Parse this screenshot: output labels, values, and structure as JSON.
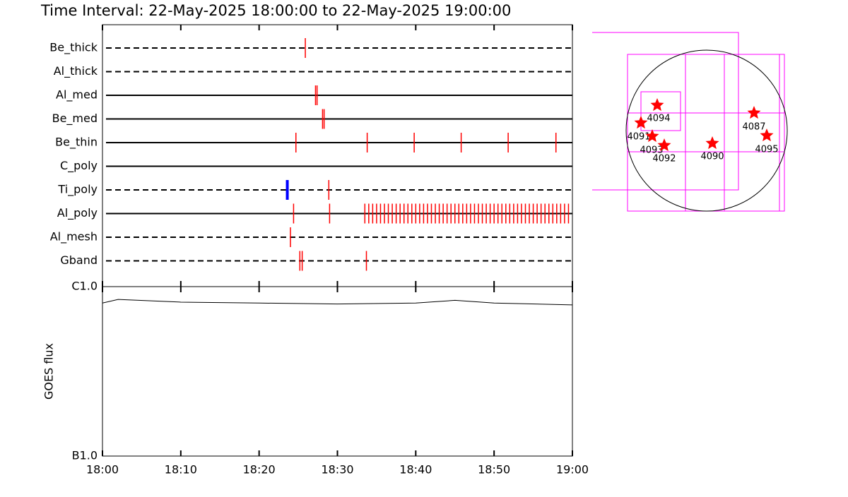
{
  "chart_data": {
    "type": "timeline",
    "title": "Time Interval: 22-May-2025 18:00:00 to 22-May-2025 19:00:00",
    "xlim": [
      0,
      60
    ],
    "xticks": [
      {
        "value": 0,
        "label": "18:00"
      },
      {
        "value": 10,
        "label": "18:10"
      },
      {
        "value": 20,
        "label": "18:20"
      },
      {
        "value": 30,
        "label": "18:30"
      },
      {
        "value": 40,
        "label": "18:40"
      },
      {
        "value": 50,
        "label": "18:50"
      },
      {
        "value": 60,
        "label": "19:00"
      }
    ],
    "event_color": "#ff0000",
    "rows": [
      {
        "name": "Be_thick",
        "dashed": true,
        "events": [
          25.9
        ]
      },
      {
        "name": "Al_thick",
        "dashed": true,
        "events": []
      },
      {
        "name": "Al_med",
        "dashed": false,
        "events": [
          27.2,
          27.4
        ]
      },
      {
        "name": "Be_med",
        "dashed": false,
        "events": [
          28.1,
          28.3
        ]
      },
      {
        "name": "Be_thin",
        "dashed": false,
        "events": [
          24.7,
          33.8,
          39.8,
          45.8,
          51.8,
          57.9
        ]
      },
      {
        "name": "C_poly",
        "dashed": false,
        "events": []
      },
      {
        "name": "Ti_poly",
        "dashed": true,
        "events": [
          28.9
        ],
        "special_events": [
          23.6
        ],
        "special_color": "#0000ff"
      },
      {
        "name": "Al_poly",
        "dashed": false,
        "events": [
          24.4,
          29.0,
          33.5,
          34,
          34.5,
          35,
          35.5,
          36,
          36.5,
          37,
          37.5,
          38,
          38.5,
          39,
          39.5,
          40,
          40.5,
          41,
          41.5,
          42,
          42.5,
          43,
          43.5,
          44,
          44.5,
          45,
          45.5,
          46,
          46.5,
          47,
          47.5,
          48,
          48.5,
          49,
          49.5,
          50,
          50.5,
          51,
          51.5,
          52,
          52.5,
          53,
          53.5,
          54,
          54.5,
          55,
          55.5,
          56,
          56.5,
          57,
          57.5,
          58,
          58.5,
          59,
          59.5
        ]
      },
      {
        "name": "Al_mesh",
        "dashed": true,
        "events": [
          24.0
        ]
      },
      {
        "name": "Gband",
        "dashed": true,
        "events": [
          25.2,
          25.5,
          33.7
        ]
      }
    ],
    "goes": {
      "ylabel": "GOES flux",
      "log": true,
      "ylim": [
        1e-07,
        1e-06
      ],
      "yticks": [
        {
          "value": 1e-07,
          "label": "B1.0"
        },
        {
          "value": 1e-06,
          "label": "C1.0"
        }
      ],
      "x": [
        0,
        2,
        10,
        20,
        30,
        40,
        45,
        50,
        60
      ],
      "values": [
        8e-07,
        8.4e-07,
        8.1e-07,
        8e-07,
        7.9e-07,
        8e-07,
        8.3e-07,
        8e-07,
        7.8e-07
      ]
    },
    "regions": [
      "4094",
      "4091",
      "4093",
      "4092",
      "4090",
      "4087",
      "4095"
    ]
  }
}
